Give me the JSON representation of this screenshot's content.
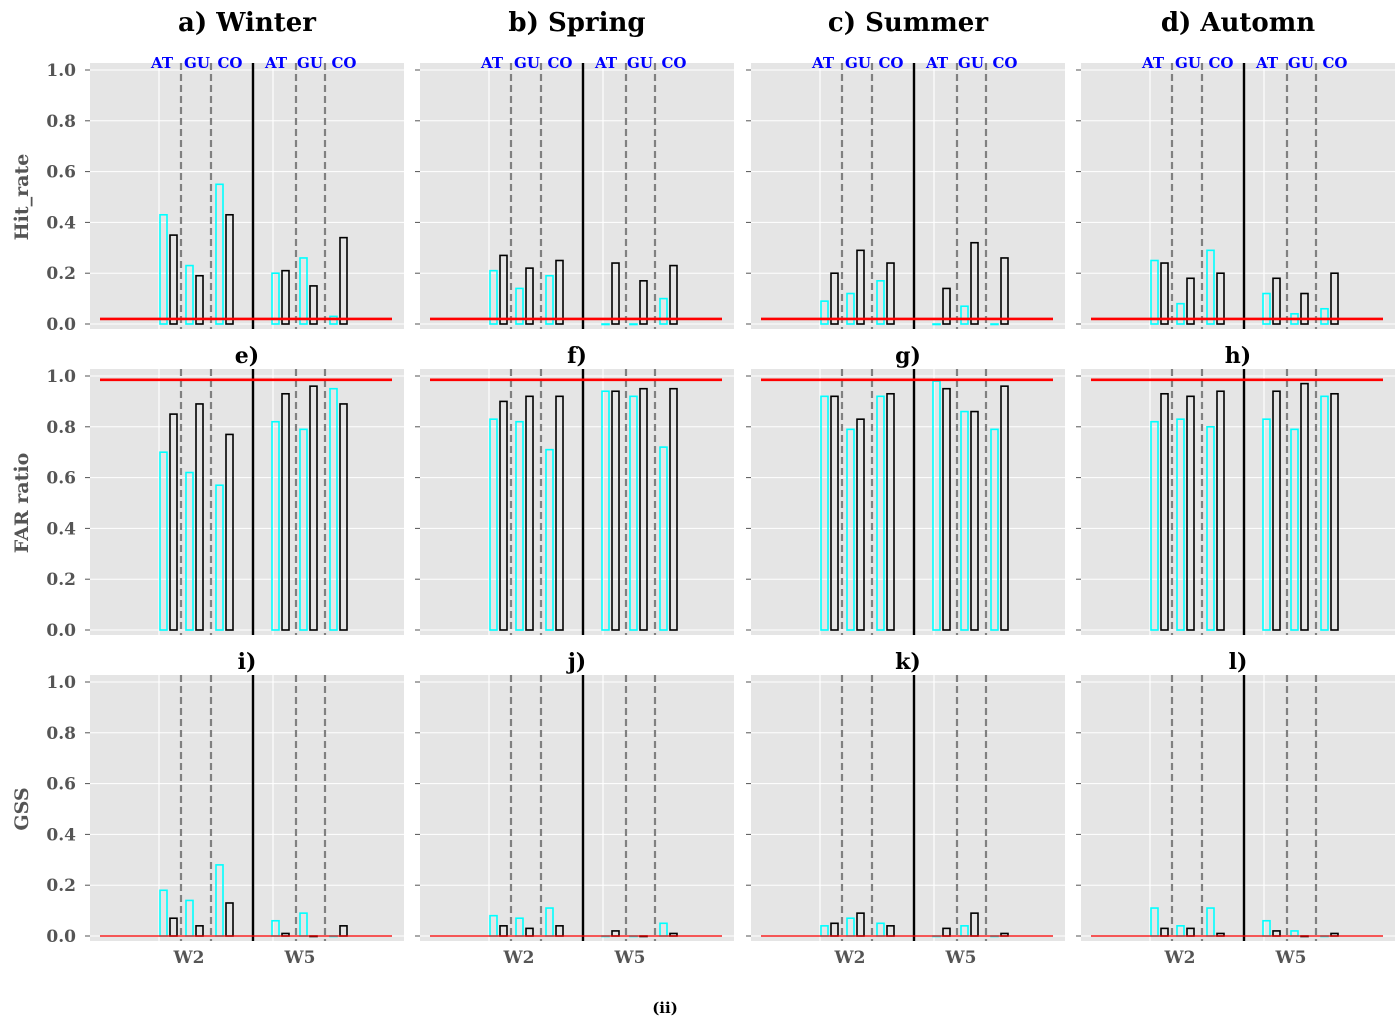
{
  "figure": {
    "caption": "(ii)"
  },
  "panel_titles": [
    [
      "a) Winter",
      "b) Spring",
      "c) Summer",
      "d) Automn"
    ],
    [
      "e)",
      "f)",
      "g)",
      "h)"
    ],
    [
      "i)",
      "j)",
      "k)",
      "l)"
    ]
  ],
  "row_labels": [
    "Hit_rate",
    "FAR ratio",
    "GSS"
  ],
  "group_labels": [
    "AT",
    "GU",
    "CO",
    "AT",
    "GU",
    "CO"
  ],
  "chart_data": {
    "type": "bar",
    "categories": [
      "W2",
      "W5"
    ],
    "subgroups": [
      "AT",
      "GU",
      "CO"
    ],
    "ylim": [
      0,
      1.0
    ],
    "yticks": [
      "0.0",
      "0.2",
      "0.4",
      "0.6",
      "0.8",
      "1.0"
    ],
    "grid": true,
    "colors": {
      "series_a": "#00ffff",
      "series_b": "#000000",
      "reference": "#ff0000",
      "background": "#e5e5e5",
      "divider": "#000000",
      "dashed": "#808080"
    },
    "reference_lines": [
      0.02,
      0.985,
      0.0
    ],
    "panels": [
      [
        {
          "a": [
            0.43,
            0.23,
            0.55,
            0.2,
            0.26,
            0.03
          ],
          "b": [
            0.35,
            0.19,
            0.43,
            0.21,
            0.15,
            0.34
          ]
        },
        {
          "a": [
            0.21,
            0.14,
            0.19,
            0.0,
            0.0,
            0.1
          ],
          "b": [
            0.27,
            0.22,
            0.25,
            0.24,
            0.17,
            0.23
          ]
        },
        {
          "a": [
            0.09,
            0.12,
            0.17,
            0.0,
            0.07,
            0.0
          ],
          "b": [
            0.2,
            0.29,
            0.24,
            0.14,
            0.32,
            0.26
          ]
        },
        {
          "a": [
            0.25,
            0.08,
            0.29,
            0.12,
            0.04,
            0.06
          ],
          "b": [
            0.24,
            0.18,
            0.2,
            0.18,
            0.12,
            0.2
          ]
        }
      ],
      [
        {
          "a": [
            0.7,
            0.62,
            0.57,
            0.82,
            0.79,
            0.95
          ],
          "b": [
            0.85,
            0.89,
            0.77,
            0.93,
            0.96,
            0.89
          ]
        },
        {
          "a": [
            0.83,
            0.82,
            0.71,
            0.94,
            0.92,
            0.72
          ],
          "b": [
            0.9,
            0.92,
            0.92,
            0.94,
            0.95,
            0.95
          ]
        },
        {
          "a": [
            0.92,
            0.79,
            0.92,
            0.98,
            0.86,
            0.79
          ],
          "b": [
            0.92,
            0.83,
            0.93,
            0.95,
            0.86,
            0.96
          ]
        },
        {
          "a": [
            0.82,
            0.83,
            0.8,
            0.83,
            0.79,
            0.92
          ],
          "b": [
            0.93,
            0.92,
            0.94,
            0.94,
            0.97,
            0.93
          ]
        }
      ],
      [
        {
          "a": [
            0.18,
            0.14,
            0.28,
            0.06,
            0.09,
            0.0
          ],
          "b": [
            0.07,
            0.04,
            0.13,
            0.01,
            0.0,
            0.04
          ]
        },
        {
          "a": [
            0.08,
            0.07,
            0.11,
            0.0,
            0.0,
            0.05
          ],
          "b": [
            0.04,
            0.03,
            0.04,
            0.02,
            0.0,
            0.01
          ]
        },
        {
          "a": [
            0.04,
            0.07,
            0.05,
            0.0,
            0.04,
            0.0
          ],
          "b": [
            0.05,
            0.09,
            0.04,
            0.03,
            0.09,
            0.01
          ]
        },
        {
          "a": [
            0.11,
            0.04,
            0.11,
            0.06,
            0.02,
            0.0
          ],
          "b": [
            0.03,
            0.03,
            0.01,
            0.02,
            0.0,
            0.01
          ]
        }
      ]
    ]
  }
}
